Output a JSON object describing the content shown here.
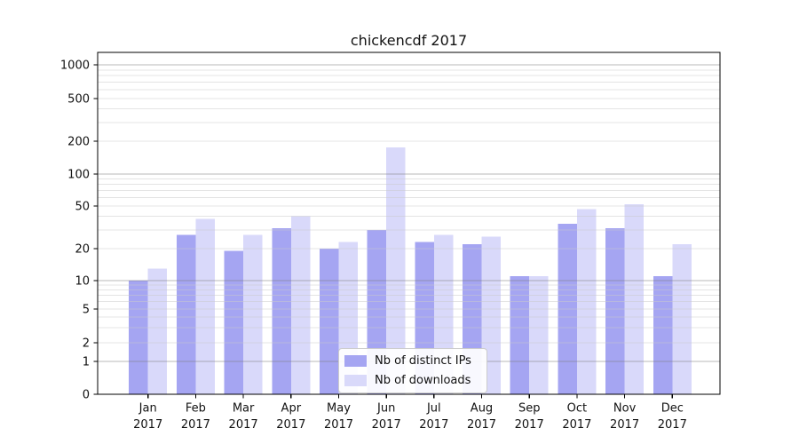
{
  "chart_data": {
    "type": "bar",
    "title": "chickencdf 2017",
    "xlabel": "",
    "ylabel": "",
    "year_label": "2017",
    "categories": [
      "Jan",
      "Feb",
      "Mar",
      "Apr",
      "May",
      "Jun",
      "Jul",
      "Aug",
      "Sep",
      "Oct",
      "Nov",
      "Dec"
    ],
    "series": [
      {
        "name": "Nb of distinct IPs",
        "color": "#a5a5f2",
        "values": [
          10,
          27,
          19,
          31,
          20,
          30,
          23,
          22,
          11,
          34,
          31,
          11
        ]
      },
      {
        "name": "Nb of downloads",
        "color": "#d9d9fa",
        "values": [
          13,
          38,
          27,
          40,
          23,
          175,
          27,
          26,
          11,
          47,
          52,
          22
        ]
      }
    ],
    "y_ticks": [
      0,
      1,
      2,
      5,
      10,
      20,
      50,
      100,
      200,
      500,
      1000
    ],
    "y_scale": "symlog-like",
    "y_scale_anchors": [
      [
        0,
        0.0
      ],
      [
        1,
        0.0961
      ],
      [
        2,
        0.1506
      ],
      [
        5,
        0.2494
      ],
      [
        10,
        0.3325
      ],
      [
        20,
        0.426
      ],
      [
        50,
        0.5506
      ],
      [
        100,
        0.6442
      ],
      [
        200,
        0.7403
      ],
      [
        500,
        0.8649
      ],
      [
        1000,
        0.9636
      ]
    ],
    "grid": true,
    "grid_major_values": [
      1,
      10,
      100,
      1000
    ],
    "legend_position": "lower center"
  }
}
